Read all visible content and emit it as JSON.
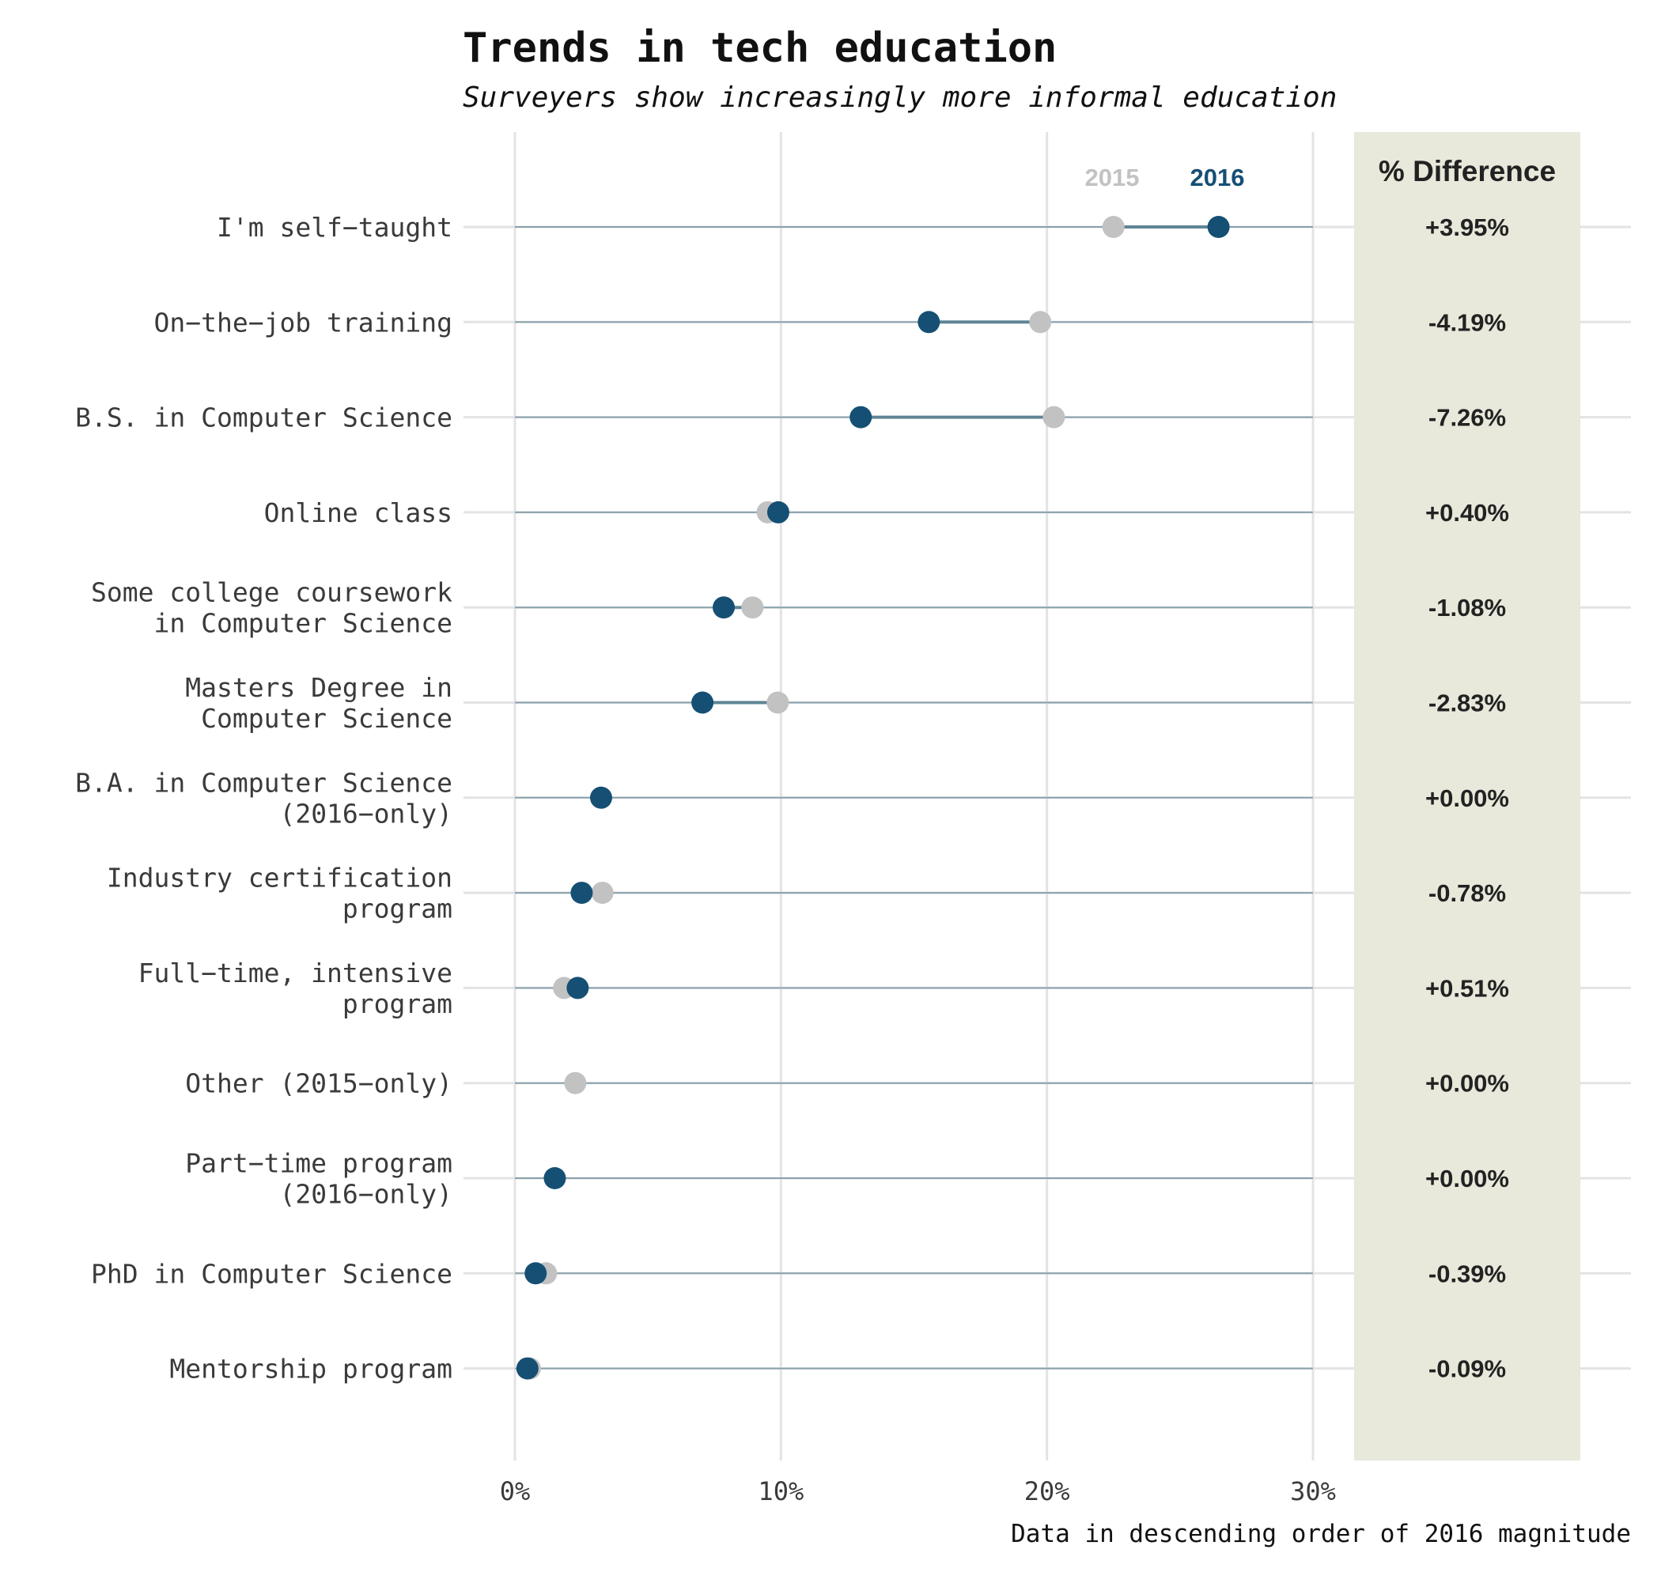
{
  "chart_data": {
    "type": "dumbbell",
    "title": "Trends in tech education",
    "subtitle": "Surveyers show increasingly more informal education",
    "caption": "Data in descending order of 2016 magnitude",
    "diff_header": "% Difference",
    "xlim": [
      0,
      30
    ],
    "x_ticks": [
      0,
      10,
      20,
      30
    ],
    "x_tick_labels": [
      "0%",
      "10%",
      "20%",
      "30%"
    ],
    "grid": true,
    "colors": {
      "y2015": "#c2c2c2",
      "y2016": "#154f74",
      "segment": "#5f8594",
      "row_line": "#8aa1ae",
      "panel": "#e8e8db",
      "grid": "#e3e3e3",
      "text": "#3a3a3a"
    },
    "series": [
      {
        "name": "2015"
      },
      {
        "name": "2016"
      }
    ],
    "categories": [
      {
        "label": [
          "I'm self−taught"
        ],
        "y2015": 22.5,
        "y2016": 26.45,
        "diff": "+3.95%"
      },
      {
        "label": [
          "On−the−job training"
        ],
        "y2015": 19.75,
        "y2016": 15.56,
        "diff": "-4.19%"
      },
      {
        "label": [
          "B.S. in Computer Science"
        ],
        "y2015": 20.26,
        "y2016": 13.0,
        "diff": "-7.26%"
      },
      {
        "label": [
          "Online class"
        ],
        "y2015": 9.5,
        "y2016": 9.9,
        "diff": "+0.40%"
      },
      {
        "label": [
          "Some college coursework",
          "in Computer Science"
        ],
        "y2015": 8.93,
        "y2016": 7.85,
        "diff": "-1.08%"
      },
      {
        "label": [
          "Masters Degree in",
          "Computer Science"
        ],
        "y2015": 9.88,
        "y2016": 7.05,
        "diff": "-2.83%"
      },
      {
        "label": [
          "B.A. in Computer Science",
          "(2016−only)"
        ],
        "y2015": null,
        "y2016": 3.24,
        "diff": "+0.00%"
      },
      {
        "label": [
          "Industry certification",
          "program"
        ],
        "y2015": 3.29,
        "y2016": 2.51,
        "diff": "-0.78%"
      },
      {
        "label": [
          "Full−time, intensive",
          "program"
        ],
        "y2015": 1.85,
        "y2016": 2.36,
        "diff": "+0.51%"
      },
      {
        "label": [
          "Other (2015−only)"
        ],
        "y2015": 2.27,
        "y2016": null,
        "diff": "+0.00%"
      },
      {
        "label": [
          "Part−time program",
          "(2016−only)"
        ],
        "y2015": null,
        "y2016": 1.5,
        "diff": "+0.00%"
      },
      {
        "label": [
          "PhD in Computer Science"
        ],
        "y2015": 1.17,
        "y2016": 0.78,
        "diff": "-0.39%"
      },
      {
        "label": [
          "Mentorship program"
        ],
        "y2015": 0.56,
        "y2016": 0.47,
        "diff": "-0.09%"
      }
    ]
  }
}
